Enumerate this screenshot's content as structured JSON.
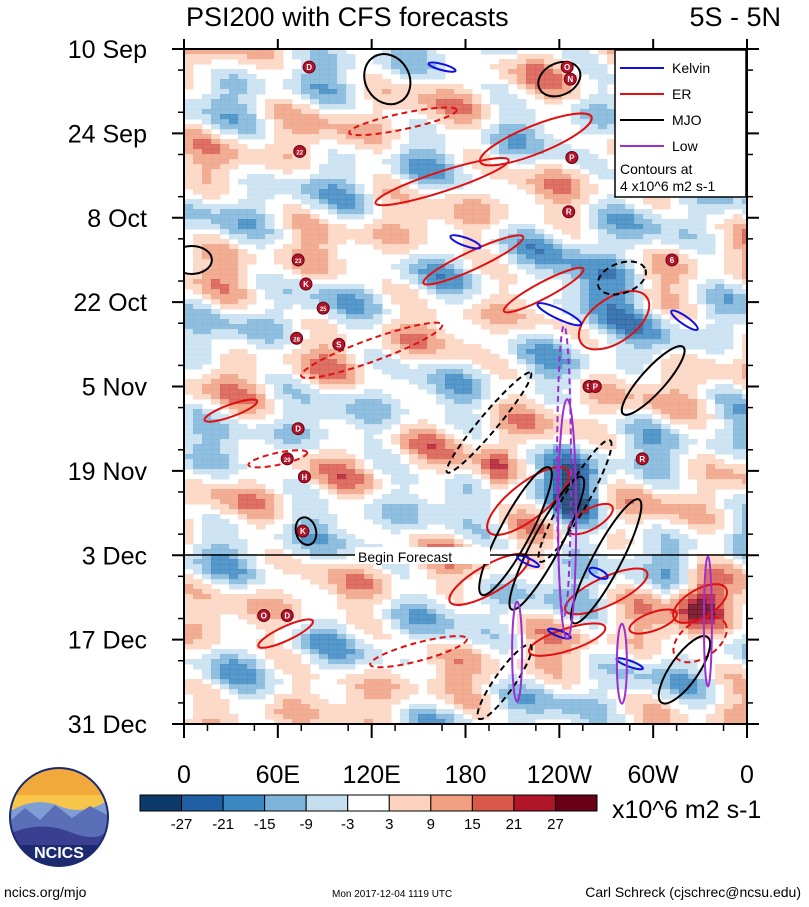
{
  "header": {
    "title": "PSI200 with CFS forecasts",
    "region": "5S - 5N"
  },
  "chart_data": {
    "type": "heatmap",
    "title": "PSI200 with CFS forecasts",
    "subtitle": "5S - 5N",
    "y_ticks": [
      "10 Sep",
      "24 Sep",
      "8 Oct",
      "22 Oct",
      "5 Nov",
      "19 Nov",
      "3 Dec",
      "17 Dec",
      "31 Dec"
    ],
    "x_ticks": [
      "0",
      "60E",
      "120E",
      "180",
      "120W",
      "60W",
      "0"
    ],
    "forecast_label": "Begin Forecast",
    "forecast_date": "3 Dec",
    "legend": [
      {
        "label": "Kelvin",
        "color": "#1010e0"
      },
      {
        "label": "ER",
        "color": "#e01010"
      },
      {
        "label": "MJO",
        "color": "#000000"
      },
      {
        "label": "Low",
        "color": "#9b30d0"
      }
    ],
    "contour_note_line1": "Contours at",
    "contour_note_line2": "4 x10^6 m2 s-1",
    "colorbar": {
      "labels": [
        "-27",
        "-21",
        "-15",
        "-9",
        "-3",
        "3",
        "9",
        "15",
        "21",
        "27"
      ],
      "colors": [
        "#0d3a6b",
        "#1f5fa3",
        "#3b87c2",
        "#7db4da",
        "#c6dff0",
        "#ffffff",
        "#fbd3bf",
        "#f0a081",
        "#d8584a",
        "#b0152a",
        "#680016"
      ],
      "units": "x10^6 m2 s-1"
    },
    "storm_markers": [
      {
        "t": "D",
        "lon": 80,
        "day": 3
      },
      {
        "t": "O",
        "lon": 245,
        "day": 3
      },
      {
        "t": "N",
        "lon": 247,
        "day": 5
      },
      {
        "t": "22",
        "lon": 74,
        "day": 17
      },
      {
        "t": "P",
        "lon": 248,
        "day": 18
      },
      {
        "t": "R",
        "lon": 246,
        "day": 27
      },
      {
        "t": "23",
        "lon": 73,
        "day": 35
      },
      {
        "t": "6",
        "lon": 312,
        "day": 35
      },
      {
        "t": "K",
        "lon": 78,
        "day": 39
      },
      {
        "t": "25",
        "lon": 89,
        "day": 43
      },
      {
        "t": "28",
        "lon": 72,
        "day": 48
      },
      {
        "t": "S",
        "lon": 99,
        "day": 49
      },
      {
        "t": "S",
        "lon": 259,
        "day": 56
      },
      {
        "t": "P",
        "lon": 263,
        "day": 56
      },
      {
        "t": "D",
        "lon": 73,
        "day": 63
      },
      {
        "t": "R",
        "lon": 293,
        "day": 68
      },
      {
        "t": "29",
        "lon": 66,
        "day": 68
      },
      {
        "t": "H",
        "lon": 77,
        "day": 71
      },
      {
        "t": "K",
        "lon": 76,
        "day": 80
      },
      {
        "t": "O",
        "lon": 51,
        "day": 94
      },
      {
        "t": "D",
        "lon": 66,
        "day": 94
      }
    ]
  },
  "footer": {
    "url": "ncics.org/mjo",
    "timestamp": "Mon 2017-12-04 1119 UTC",
    "author": "Carl Schreck (cjschrec@ncsu.edu)",
    "logo_text": "NCICS"
  }
}
